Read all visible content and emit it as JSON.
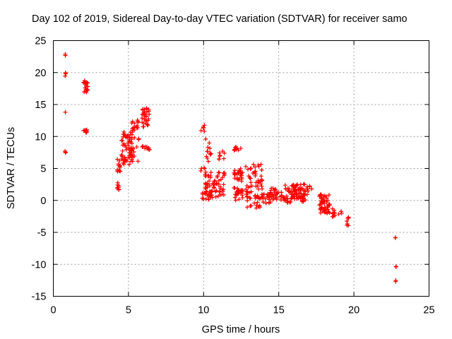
{
  "chart_data": {
    "type": "scatter",
    "title": "Day 102 of 2019, Sidereal Day-to-day VTEC variation (SDTVAR) for receiver samo",
    "xlabel": "GPS time / hours",
    "ylabel": "SDTVAR / TECUs",
    "xlim": [
      0,
      25
    ],
    "ylim": [
      -15,
      25
    ],
    "xticks": [
      0,
      5,
      10,
      15,
      20,
      25
    ],
    "yticks": [
      -15,
      -10,
      -5,
      0,
      5,
      10,
      15,
      20,
      25
    ],
    "xtick_labels": [
      "0",
      "5",
      "10",
      "15",
      "20",
      "25"
    ],
    "ytick_labels": [
      "-15",
      "-10",
      "-5",
      "0",
      "5",
      "10",
      "15",
      "20",
      "25"
    ],
    "grid": true,
    "marker": "+",
    "series": [
      {
        "name": "SDTVAR",
        "color": "#ff0000",
        "clusters": [
          {
            "x": [
              0.75,
              0.85
            ],
            "y": [
              22.5,
              23.0
            ],
            "n": 2
          },
          {
            "x": [
              0.75,
              0.85
            ],
            "y": [
              19.4,
              20.0
            ],
            "n": 3
          },
          {
            "x": [
              0.75,
              0.85
            ],
            "y": [
              13.8,
              13.8
            ],
            "n": 1
          },
          {
            "x": [
              0.75,
              0.85
            ],
            "y": [
              7.4,
              7.9
            ],
            "n": 3
          },
          {
            "x": [
              2.0,
              2.3
            ],
            "y": [
              16.9,
              18.8
            ],
            "n": 18
          },
          {
            "x": [
              2.0,
              2.3
            ],
            "y": [
              10.6,
              11.2
            ],
            "n": 8
          },
          {
            "x": [
              4.25,
              4.45
            ],
            "y": [
              1.6,
              3.0
            ],
            "n": 8
          },
          {
            "x": [
              4.25,
              4.5
            ],
            "y": [
              4.5,
              6.5
            ],
            "n": 12
          },
          {
            "x": [
              4.5,
              5.3
            ],
            "y": [
              5.5,
              10.8
            ],
            "n": 55
          },
          {
            "x": [
              5.0,
              5.7
            ],
            "y": [
              6.0,
              8.5
            ],
            "n": 18
          },
          {
            "x": [
              5.2,
              5.7
            ],
            "y": [
              9.5,
              12.6
            ],
            "n": 22
          },
          {
            "x": [
              5.9,
              6.4
            ],
            "y": [
              11.5,
              14.5
            ],
            "n": 30
          },
          {
            "x": [
              5.9,
              6.4
            ],
            "y": [
              7.8,
              8.5
            ],
            "n": 10
          },
          {
            "x": [
              9.8,
              10.1
            ],
            "y": [
              10.8,
              12.2
            ],
            "n": 6
          },
          {
            "x": [
              9.8,
              10.1
            ],
            "y": [
              4.6,
              5.1
            ],
            "n": 4
          },
          {
            "x": [
              9.8,
              10.6
            ],
            "y": [
              0.0,
              1.5
            ],
            "n": 20
          },
          {
            "x": [
              10.1,
              10.5
            ],
            "y": [
              6.0,
              10.0
            ],
            "n": 12
          },
          {
            "x": [
              10.1,
              11.0
            ],
            "y": [
              0.5,
              4.5
            ],
            "n": 45
          },
          {
            "x": [
              11.0,
              11.4
            ],
            "y": [
              6.3,
              7.8
            ],
            "n": 8
          },
          {
            "x": [
              11.0,
              11.4
            ],
            "y": [
              0.8,
              4.5
            ],
            "n": 20
          },
          {
            "x": [
              12.0,
              12.5
            ],
            "y": [
              7.7,
              8.5
            ],
            "n": 10
          },
          {
            "x": [
              12.0,
              12.6
            ],
            "y": [
              3.0,
              5.0
            ],
            "n": 25
          },
          {
            "x": [
              12.0,
              12.6
            ],
            "y": [
              0.0,
              2.0
            ],
            "n": 25
          },
          {
            "x": [
              12.8,
              13.9
            ],
            "y": [
              -1.2,
              5.7
            ],
            "n": 70
          },
          {
            "x": [
              13.9,
              14.3
            ],
            "y": [
              -0.6,
              1.0
            ],
            "n": 10
          },
          {
            "x": [
              14.3,
              14.8
            ],
            "y": [
              -0.5,
              2.0
            ],
            "n": 25
          },
          {
            "x": [
              14.8,
              15.4
            ],
            "y": [
              0.0,
              1.3
            ],
            "n": 15
          },
          {
            "x": [
              15.4,
              15.9
            ],
            "y": [
              -0.4,
              2.5
            ],
            "n": 25
          },
          {
            "x": [
              15.9,
              16.5
            ],
            "y": [
              0.2,
              2.5
            ],
            "n": 45
          },
          {
            "x": [
              16.5,
              17.0
            ],
            "y": [
              -0.2,
              2.6
            ],
            "n": 25
          },
          {
            "x": [
              17.0,
              17.2
            ],
            "y": [
              0.0,
              2.5
            ],
            "n": 3
          },
          {
            "x": [
              17.7,
              18.4
            ],
            "y": [
              -2.0,
              1.0
            ],
            "n": 55
          },
          {
            "x": [
              18.5,
              19.2
            ],
            "y": [
              -3.2,
              -1.3
            ],
            "n": 12
          },
          {
            "x": [
              19.5,
              19.7
            ],
            "y": [
              -4.0,
              -2.5
            ],
            "n": 7
          },
          {
            "x": [
              22.75,
              22.9
            ],
            "y": [
              -6.0,
              -5.7
            ],
            "n": 2
          },
          {
            "x": [
              22.75,
              22.9
            ],
            "y": [
              -10.6,
              -10.3
            ],
            "n": 2
          },
          {
            "x": [
              22.75,
              22.9
            ],
            "y": [
              -12.8,
              -12.5
            ],
            "n": 2
          }
        ]
      }
    ]
  }
}
